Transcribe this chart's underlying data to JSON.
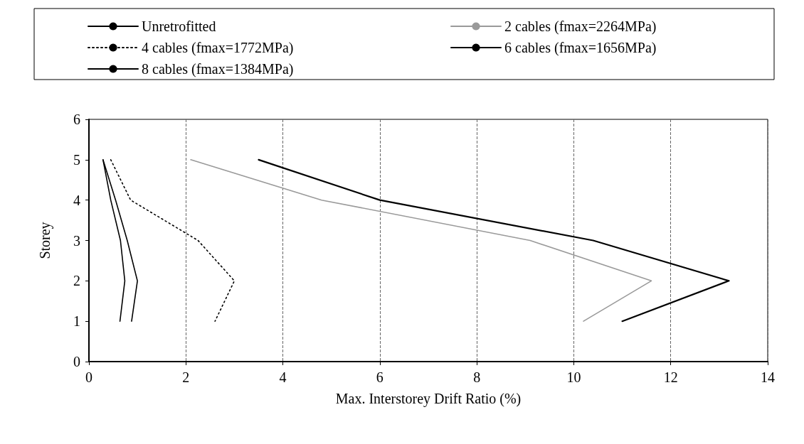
{
  "chart_data": {
    "type": "line",
    "xlabel": "Max. Interstorey Drift Ratio (%)",
    "ylabel": "Storey",
    "xlim": [
      0,
      14
    ],
    "xticks": [
      0,
      2,
      4,
      6,
      8,
      10,
      12,
      14
    ],
    "ylim": [
      0,
      6
    ],
    "yticks": [
      0,
      1,
      2,
      3,
      4,
      5,
      6
    ],
    "grid": "x",
    "legend": "top",
    "marker": "none",
    "series": [
      {
        "name": "Unretrofitted",
        "color": "#000000",
        "line_style": "solid",
        "x": [
          3.5,
          6,
          10.4,
          13.2,
          11
        ],
        "values": [
          5,
          4,
          3,
          2,
          1
        ]
      },
      {
        "name": "2 cables (fmax=2264MPa)",
        "color": "#9a9a9a",
        "line_style": "solid",
        "x": [
          2.1,
          4.8,
          9.1,
          11.6,
          10.2
        ],
        "values": [
          5,
          4,
          3,
          2,
          1
        ]
      },
      {
        "name": "4 cables (fmax=1772MPa)",
        "color": "#000000",
        "line_style": "dotted",
        "x": [
          0.45,
          0.86,
          2.25,
          3.0,
          2.6
        ],
        "values": [
          5,
          4,
          3,
          2,
          1
        ]
      },
      {
        "name": "6 cables (fmax=1656MPa)",
        "color": "#000000",
        "line_style": "solid",
        "x": [
          0.29,
          0.55,
          0.79,
          1.0,
          0.88
        ],
        "values": [
          5,
          4,
          3,
          2,
          1
        ]
      },
      {
        "name": "8 cables (fmax=1384MPa)",
        "color": "#000000",
        "line_style": "solid",
        "x": [
          0.29,
          0.45,
          0.65,
          0.74,
          0.64
        ],
        "values": [
          5,
          4,
          3,
          2,
          1
        ]
      }
    ]
  }
}
